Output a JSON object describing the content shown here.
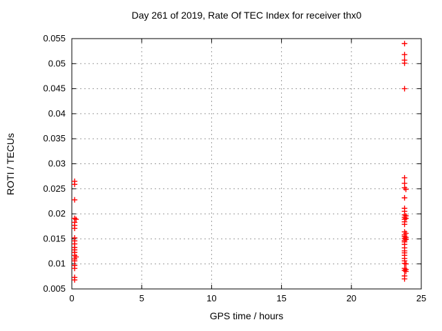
{
  "window": {
    "background": "#ffffff"
  },
  "chart_data": {
    "type": "scatter",
    "title": "Day 261 of 2019, Rate Of TEC Index for receiver thx0",
    "xlabel": "GPS time / hours",
    "ylabel": "ROTI / TECUs",
    "xlim": [
      0,
      25
    ],
    "ylim": [
      0.005,
      0.055
    ],
    "xticks": {
      "values": [
        0,
        5,
        10,
        15,
        20,
        25
      ],
      "labels": [
        "0",
        "5",
        "10",
        "15",
        "20",
        "25"
      ]
    },
    "yticks": {
      "values": [
        0.005,
        0.01,
        0.015,
        0.02,
        0.025,
        0.03,
        0.035,
        0.04,
        0.045,
        0.05,
        0.055
      ],
      "labels": [
        "0.005",
        "0.01",
        "0.015",
        "0.02",
        "0.025",
        "0.03",
        "0.035",
        "0.04",
        "0.045",
        "0.05",
        "0.055"
      ]
    },
    "grid": true,
    "legend_position": "none",
    "marker": {
      "shape": "plus",
      "color": "#ff0000",
      "size": 4,
      "stroke_width": 1.4
    },
    "axis_color": "#000000",
    "grid_color": "#999999",
    "series": [
      {
        "name": "ROTI",
        "points": [
          [
            0.2,
            0.0265
          ],
          [
            0.2,
            0.0259
          ],
          [
            0.2,
            0.0228
          ],
          [
            0.2,
            0.0191
          ],
          [
            0.3,
            0.0189
          ],
          [
            0.2,
            0.0183
          ],
          [
            0.2,
            0.0177
          ],
          [
            0.2,
            0.0171
          ],
          [
            0.2,
            0.0152
          ],
          [
            0.2,
            0.0146
          ],
          [
            0.2,
            0.014
          ],
          [
            0.2,
            0.0133
          ],
          [
            0.2,
            0.0128
          ],
          [
            0.2,
            0.0123
          ],
          [
            0.2,
            0.0117
          ],
          [
            0.3,
            0.0114
          ],
          [
            0.2,
            0.011
          ],
          [
            0.2,
            0.0106
          ],
          [
            0.2,
            0.0097
          ],
          [
            0.2,
            0.0091
          ],
          [
            0.2,
            0.0073
          ],
          [
            0.2,
            0.0068
          ],
          [
            23.8,
            0.054
          ],
          [
            23.8,
            0.0518
          ],
          [
            23.8,
            0.0507
          ],
          [
            23.8,
            0.0501
          ],
          [
            23.8,
            0.045
          ],
          [
            23.8,
            0.0272
          ],
          [
            23.8,
            0.0261
          ],
          [
            23.8,
            0.0252
          ],
          [
            23.9,
            0.0249
          ],
          [
            23.8,
            0.0232
          ],
          [
            23.8,
            0.0211
          ],
          [
            23.8,
            0.0205
          ],
          [
            23.8,
            0.0198
          ],
          [
            23.9,
            0.0196
          ],
          [
            23.8,
            0.0193
          ],
          [
            23.9,
            0.0191
          ],
          [
            23.8,
            0.0189
          ],
          [
            23.8,
            0.0184
          ],
          [
            23.8,
            0.0179
          ],
          [
            23.8,
            0.0164
          ],
          [
            23.9,
            0.0161
          ],
          [
            23.8,
            0.0158
          ],
          [
            23.8,
            0.0155
          ],
          [
            23.9,
            0.0153
          ],
          [
            23.8,
            0.0151
          ],
          [
            23.9,
            0.0149
          ],
          [
            23.8,
            0.0147
          ],
          [
            23.8,
            0.0144
          ],
          [
            23.8,
            0.0139
          ],
          [
            23.8,
            0.0132
          ],
          [
            23.8,
            0.0126
          ],
          [
            23.8,
            0.0122
          ],
          [
            23.8,
            0.0117
          ],
          [
            23.8,
            0.0111
          ],
          [
            23.8,
            0.0106
          ],
          [
            23.8,
            0.0101
          ],
          [
            23.9,
            0.01
          ],
          [
            23.8,
            0.0091
          ],
          [
            23.9,
            0.0089
          ],
          [
            23.8,
            0.0087
          ],
          [
            23.9,
            0.0085
          ],
          [
            23.8,
            0.0076
          ],
          [
            23.8,
            0.007
          ]
        ]
      }
    ]
  }
}
